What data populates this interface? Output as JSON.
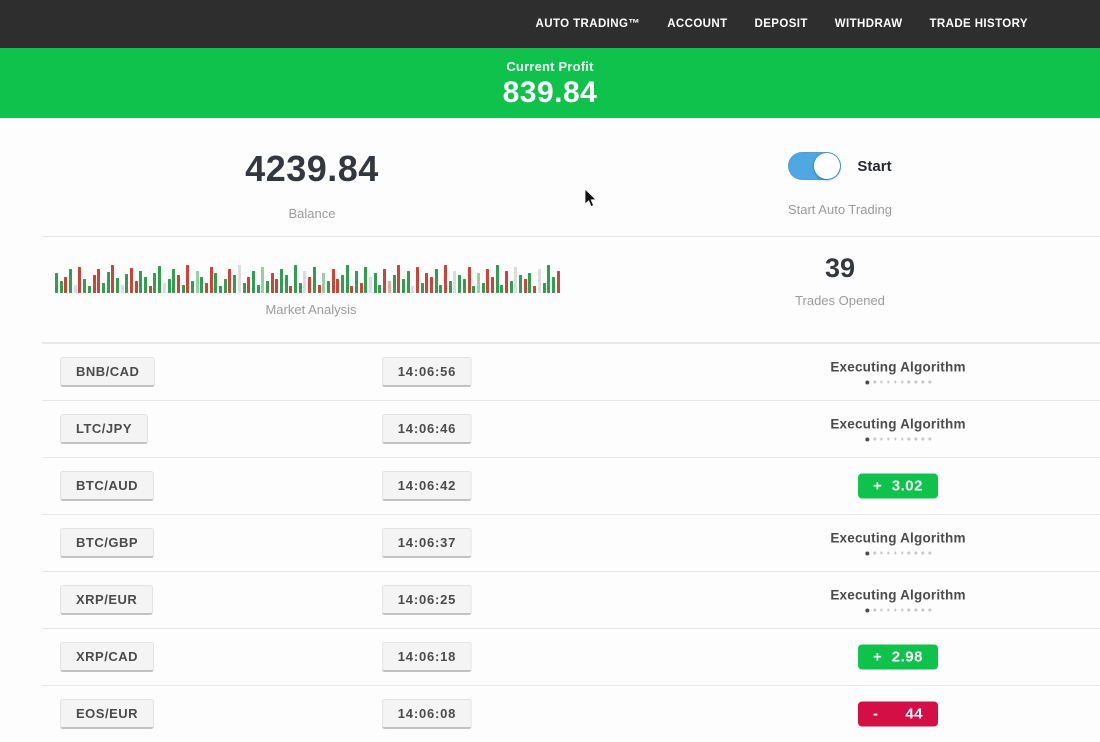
{
  "nav": {
    "items": [
      "AUTO TRADING™",
      "ACCOUNT",
      "DEPOSIT",
      "WITHDRAW",
      "TRADE HISTORY"
    ]
  },
  "banner": {
    "label": "Current Profit",
    "value": "839.84"
  },
  "summary": {
    "balance": {
      "value": "4239.84",
      "label": "Balance"
    },
    "auto_trading": {
      "toggle_label": "Start",
      "label": "Start Auto Trading",
      "toggle_on": true
    },
    "market": {
      "label": "Market Analysis"
    },
    "trades_opened": {
      "value": "39",
      "label": "Trades Opened"
    }
  },
  "labels": {
    "executing_algorithm": "Executing Algorithm",
    "progress_dots": 10
  },
  "market_chart": {
    "heights": [
      20,
      12,
      16,
      24,
      8,
      26,
      14,
      7,
      18,
      24,
      10,
      21,
      28,
      15,
      8,
      19,
      25,
      12,
      22,
      16,
      7,
      20,
      27,
      10,
      14,
      24,
      18,
      8,
      28,
      12,
      22,
      16,
      10,
      26,
      20,
      7,
      14,
      24,
      18,
      28,
      10,
      16,
      22,
      8,
      26,
      12,
      20,
      14,
      24,
      18,
      7,
      28,
      10,
      22,
      16,
      26,
      8,
      20,
      12,
      24,
      14,
      18,
      28,
      7,
      22,
      10,
      26,
      16,
      20,
      8,
      24,
      12,
      18,
      28,
      14,
      22,
      7,
      26,
      10,
      20,
      16,
      24,
      8,
      28,
      12,
      22,
      18,
      14,
      26,
      7,
      20,
      10,
      24,
      16,
      28,
      8,
      22,
      12,
      26,
      18,
      14,
      20,
      7,
      24,
      10,
      28,
      16,
      22
    ],
    "colors": "ggrgnrggrrggrgngrrggrggnggrgrgGgrrgggrgngrggGgrrggrggnrgrGgrrggrgrgnggrRgrggnrgrrggrgnggrgGgrrggrgngrgrngggr",
    "palette": {
      "g": "#2f9e4f",
      "r": "#cc4437",
      "G": "#98cfa4",
      "R": "#e5a9a4",
      "n": "#dcdcdc"
    }
  },
  "trades": [
    {
      "pair": "BNB/CAD",
      "time": "14:06:56",
      "status": "executing"
    },
    {
      "pair": "LTC/JPY",
      "time": "14:06:46",
      "status": "executing"
    },
    {
      "pair": "BTC/AUD",
      "time": "14:06:42",
      "status": "profit",
      "sign": "+",
      "value": "3.02"
    },
    {
      "pair": "BTC/GBP",
      "time": "14:06:37",
      "status": "executing"
    },
    {
      "pair": "XRP/EUR",
      "time": "14:06:25",
      "status": "executing"
    },
    {
      "pair": "XRP/CAD",
      "time": "14:06:18",
      "status": "profit",
      "sign": "+",
      "value": "2.98"
    },
    {
      "pair": "EOS/EUR",
      "time": "14:06:08",
      "status": "loss",
      "sign": "-",
      "value": "44"
    }
  ],
  "colors": {
    "green": "#0fc24c",
    "red": "#d30f45",
    "blue": "#4fa8e1",
    "nav": "#2e2e2e"
  }
}
